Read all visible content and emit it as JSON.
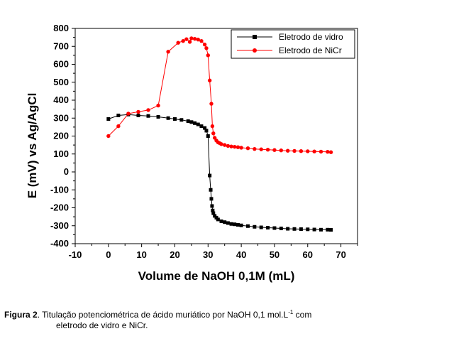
{
  "chart_data": {
    "type": "line",
    "xlabel": "Volume de NaOH 0,1M (mL)",
    "ylabel": "E (mV) vs Ag/AgCl",
    "xlim": [
      -10,
      75
    ],
    "ylim": [
      -400,
      800
    ],
    "xticks": [
      "-10",
      "0",
      "10",
      "20",
      "30",
      "40",
      "50",
      "60",
      "70"
    ],
    "yticks": [
      "-400",
      "-300",
      "-200",
      "-100",
      "0",
      "100",
      "200",
      "300",
      "400",
      "500",
      "600",
      "700",
      "800"
    ],
    "legend_position": "top-right",
    "grid": false,
    "series": [
      {
        "name": "Eletrodo de vidro",
        "color": "#000000",
        "marker": "square",
        "points": [
          [
            0,
            295
          ],
          [
            3,
            315
          ],
          [
            6,
            320
          ],
          [
            9,
            315
          ],
          [
            12,
            312
          ],
          [
            15,
            307
          ],
          [
            18,
            300
          ],
          [
            20,
            295
          ],
          [
            22,
            290
          ],
          [
            24,
            283
          ],
          [
            25,
            278
          ],
          [
            26,
            272
          ],
          [
            27,
            265
          ],
          [
            28,
            255
          ],
          [
            29,
            245
          ],
          [
            29.5,
            230
          ],
          [
            30,
            200
          ],
          [
            30.5,
            -20
          ],
          [
            30.8,
            -100
          ],
          [
            31,
            -150
          ],
          [
            31.2,
            -190
          ],
          [
            31.4,
            -215
          ],
          [
            31.6,
            -230
          ],
          [
            32,
            -245
          ],
          [
            32.5,
            -255
          ],
          [
            33,
            -265
          ],
          [
            34,
            -275
          ],
          [
            35,
            -280
          ],
          [
            36,
            -285
          ],
          [
            37,
            -290
          ],
          [
            38,
            -292
          ],
          [
            39,
            -295
          ],
          [
            40,
            -298
          ],
          [
            42,
            -302
          ],
          [
            44,
            -306
          ],
          [
            46,
            -309
          ],
          [
            48,
            -311
          ],
          [
            50,
            -313
          ],
          [
            52,
            -315
          ],
          [
            54,
            -317
          ],
          [
            56,
            -318
          ],
          [
            58,
            -319
          ],
          [
            60,
            -320
          ],
          [
            62,
            -321
          ],
          [
            64,
            -322
          ],
          [
            66,
            -322
          ],
          [
            67,
            -323
          ]
        ]
      },
      {
        "name": "Eletrodo de NiCr",
        "color": "#ff0000",
        "marker": "circle",
        "points": [
          [
            0,
            200
          ],
          [
            3,
            255
          ],
          [
            6,
            325
          ],
          [
            9,
            335
          ],
          [
            12,
            345
          ],
          [
            15,
            370
          ],
          [
            18,
            670
          ],
          [
            21,
            720
          ],
          [
            22.5,
            730
          ],
          [
            23.5,
            740
          ],
          [
            24.5,
            725
          ],
          [
            25,
            745
          ],
          [
            26,
            742
          ],
          [
            27,
            738
          ],
          [
            28,
            730
          ],
          [
            29,
            710
          ],
          [
            29.5,
            690
          ],
          [
            30,
            650
          ],
          [
            30.5,
            510
          ],
          [
            31,
            380
          ],
          [
            31.3,
            255
          ],
          [
            31.6,
            215
          ],
          [
            32,
            190
          ],
          [
            32.5,
            175
          ],
          [
            33,
            165
          ],
          [
            33.5,
            160
          ],
          [
            34,
            155
          ],
          [
            35,
            150
          ],
          [
            36,
            145
          ],
          [
            37,
            142
          ],
          [
            38,
            140
          ],
          [
            39,
            138
          ],
          [
            40,
            135
          ],
          [
            42,
            132
          ],
          [
            44,
            128
          ],
          [
            46,
            126
          ],
          [
            48,
            124
          ],
          [
            50,
            122
          ],
          [
            52,
            120
          ],
          [
            54,
            118
          ],
          [
            56,
            117
          ],
          [
            58,
            116
          ],
          [
            60,
            115
          ],
          [
            62,
            114
          ],
          [
            64,
            113
          ],
          [
            66,
            112
          ],
          [
            67,
            110
          ]
        ]
      }
    ]
  },
  "caption": {
    "label": "Figura 2",
    "text_line1": ". Titulação potenciométrica de ácido muriático por NaOH 0,1 mol.L",
    "superscript": "-1",
    "text_line1_end": " com",
    "text_line2": "eletrodo de vidro e NiCr."
  }
}
